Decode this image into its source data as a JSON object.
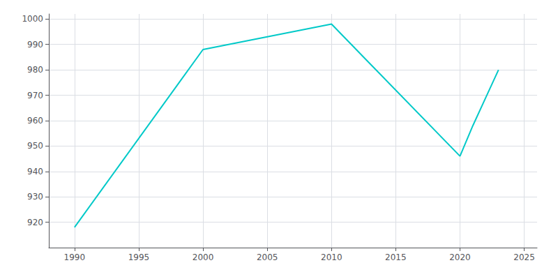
{
  "chart_data": {
    "type": "line",
    "x": [
      1990,
      2000,
      2010,
      2020,
      2021,
      2022,
      2023
    ],
    "values": [
      918,
      988,
      998,
      946,
      958,
      969,
      980
    ],
    "color": "#00C9C8",
    "xlim": [
      1988,
      2026
    ],
    "xticks": [
      1990,
      1995,
      2000,
      2005,
      2010,
      2015,
      2020,
      2025
    ],
    "ylim": [
      910,
      1002
    ],
    "yticks": [
      920,
      930,
      940,
      950,
      960,
      970,
      980,
      990,
      1000
    ],
    "grid": true
  }
}
